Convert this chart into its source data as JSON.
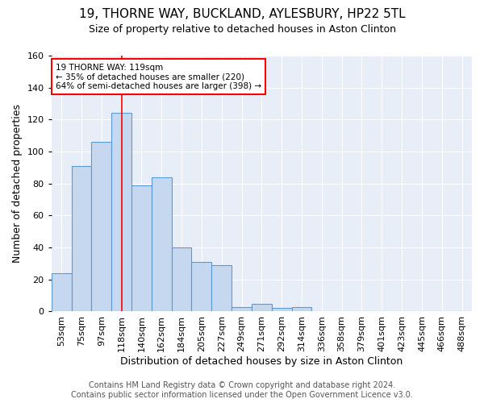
{
  "title_line1": "19, THORNE WAY, BUCKLAND, AYLESBURY, HP22 5TL",
  "title_line2": "Size of property relative to detached houses in Aston Clinton",
  "xlabel": "Distribution of detached houses by size in Aston Clinton",
  "ylabel": "Number of detached properties",
  "bar_values": [
    24,
    91,
    106,
    124,
    79,
    84,
    40,
    31,
    29,
    3,
    5,
    2,
    3,
    0,
    0,
    0,
    0,
    0,
    0,
    0,
    0
  ],
  "categories": [
    "53sqm",
    "75sqm",
    "97sqm",
    "118sqm",
    "140sqm",
    "162sqm",
    "184sqm",
    "205sqm",
    "227sqm",
    "249sqm",
    "271sqm",
    "292sqm",
    "314sqm",
    "336sqm",
    "358sqm",
    "379sqm",
    "401sqm",
    "423sqm",
    "445sqm",
    "466sqm",
    "488sqm"
  ],
  "bar_color": "#c5d8f0",
  "bar_edge_color": "#5b9bd5",
  "property_line_index": 3,
  "ylim": [
    0,
    160
  ],
  "yticks": [
    0,
    20,
    40,
    60,
    80,
    100,
    120,
    140,
    160
  ],
  "annotation_text_line1": "19 THORNE WAY: 119sqm",
  "annotation_text_line2": "← 35% of detached houses are smaller (220)",
  "annotation_text_line3": "64% of semi-detached houses are larger (398) →",
  "footer_line1": "Contains HM Land Registry data © Crown copyright and database right 2024.",
  "footer_line2": "Contains public sector information licensed under the Open Government Licence v3.0.",
  "plot_bg_color": "#e8eef8",
  "grid_color": "#ffffff",
  "title1_fontsize": 11,
  "title2_fontsize": 9,
  "ylabel_fontsize": 9,
  "xlabel_fontsize": 9,
  "tick_fontsize": 8,
  "footer_fontsize": 7
}
